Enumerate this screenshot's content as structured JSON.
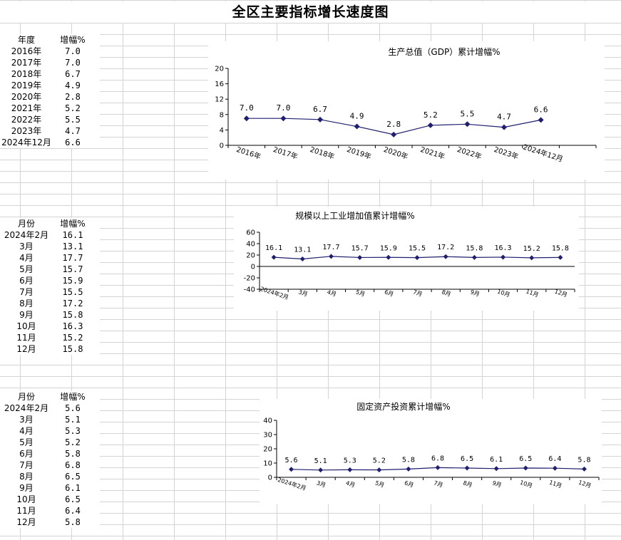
{
  "page": {
    "title": "全区主要指标增长速度图"
  },
  "tables": [
    {
      "headers": [
        "年度",
        "增幅%"
      ],
      "rows": [
        [
          "2016年",
          "7.0"
        ],
        [
          "2017年",
          "7.0"
        ],
        [
          "2018年",
          "6.7"
        ],
        [
          "2019年",
          "4.9"
        ],
        [
          "2020年",
          "2.8"
        ],
        [
          "2021年",
          "5.2"
        ],
        [
          "2022年",
          "5.5"
        ],
        [
          "2023年",
          "4.7"
        ],
        [
          "2024年12月",
          "6.6"
        ]
      ]
    },
    {
      "headers": [
        "月份",
        "增幅%"
      ],
      "rows": [
        [
          "2024年2月",
          "16.1"
        ],
        [
          "3月",
          "13.1"
        ],
        [
          "4月",
          "17.7"
        ],
        [
          "5月",
          "15.7"
        ],
        [
          "6月",
          "15.9"
        ],
        [
          "7月",
          "15.5"
        ],
        [
          "8月",
          "17.2"
        ],
        [
          "9月",
          "15.8"
        ],
        [
          "10月",
          "16.3"
        ],
        [
          "11月",
          "15.2"
        ],
        [
          "12月",
          "15.8"
        ]
      ]
    },
    {
      "headers": [
        "月份",
        "增幅%"
      ],
      "rows": [
        [
          "2024年2月",
          "5.6"
        ],
        [
          "3月",
          "5.1"
        ],
        [
          "4月",
          "5.3"
        ],
        [
          "5月",
          "5.2"
        ],
        [
          "6月",
          "5.8"
        ],
        [
          "7月",
          "6.8"
        ],
        [
          "8月",
          "6.5"
        ],
        [
          "9月",
          "6.1"
        ],
        [
          "10月",
          "6.5"
        ],
        [
          "11月",
          "6.4"
        ],
        [
          "12月",
          "5.8"
        ]
      ]
    }
  ],
  "chart_data": [
    {
      "type": "line",
      "title": "生产总值（GDP）累计增幅%",
      "categories": [
        "2016年",
        "2017年",
        "2018年",
        "2019年",
        "2020年",
        "2021年",
        "2022年",
        "2023年",
        "2024年12月"
      ],
      "values": [
        7.0,
        7.0,
        6.7,
        4.9,
        2.8,
        5.2,
        5.5,
        4.7,
        6.6
      ],
      "data_labels": [
        "7.0",
        "7.0",
        "6.7",
        "4.9",
        "2.8",
        "5.2",
        "5.5",
        "4.7",
        "6.6"
      ],
      "ylim": [
        0,
        20
      ],
      "yticks": [
        0,
        4,
        8,
        12,
        16,
        20
      ],
      "grid": false,
      "line_color": "#1f1f6e"
    },
    {
      "type": "line",
      "title": "规模以上工业增加值累计增幅%",
      "categories": [
        "2024年2月",
        "3月",
        "4月",
        "5月",
        "6月",
        "7月",
        "8月",
        "9月",
        "10月",
        "11月",
        "12月"
      ],
      "values": [
        16.1,
        13.1,
        17.7,
        15.7,
        15.9,
        15.5,
        17.2,
        15.8,
        16.3,
        15.2,
        15.8
      ],
      "data_labels": [
        "16.1",
        "13.1",
        "17.7",
        "15.7",
        "15.9",
        "15.5",
        "17.2",
        "15.8",
        "16.3",
        "15.2",
        "15.8"
      ],
      "ylim": [
        -40,
        60
      ],
      "yticks": [
        -40,
        -20,
        0,
        20,
        40,
        60
      ],
      "grid": false,
      "line_color": "#1f1f6e"
    },
    {
      "type": "line",
      "title": "固定资产投资累计增幅%",
      "categories": [
        "2024年2月",
        "3月",
        "4月",
        "5月",
        "6月",
        "7月",
        "8月",
        "9月",
        "10月",
        "11月",
        "12月"
      ],
      "values": [
        5.6,
        5.1,
        5.3,
        5.2,
        5.8,
        6.8,
        6.5,
        6.1,
        6.5,
        6.4,
        5.8
      ],
      "data_labels": [
        "5.6",
        "5.1",
        "5.3",
        "5.2",
        "5.8",
        "6.8",
        "6.5",
        "6.1",
        "6.5",
        "6.4",
        "5.8"
      ],
      "ylim": [
        0,
        40
      ],
      "yticks": [
        0,
        10,
        20,
        30,
        40
      ],
      "grid": false,
      "line_color": "#1f1f6e"
    }
  ]
}
